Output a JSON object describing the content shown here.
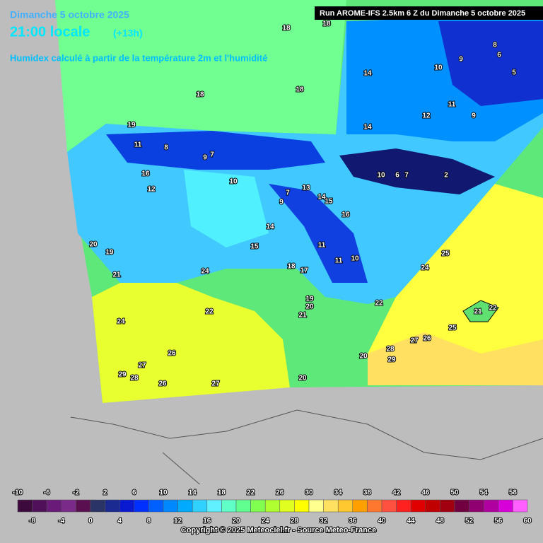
{
  "header": {
    "date": "Dimanche 5 octobre 2025",
    "time": "21:00 locale",
    "lead": "(+13h)",
    "subtitle": "Humidex calculé à partir de la température 2m et l'humidité",
    "run": "Run AROME-IFS 2.5km 6 Z du Dimanche 5 octobre 2025"
  },
  "map_labels": [
    18,
    18,
    18,
    18,
    19,
    11,
    8,
    9,
    7,
    16,
    12,
    10,
    7,
    9,
    13,
    14,
    15,
    16,
    14,
    15,
    11,
    11,
    10,
    18,
    17,
    20,
    19,
    21,
    24,
    19,
    20,
    21,
    22,
    24,
    26,
    27,
    29,
    28,
    26,
    27,
    20,
    14,
    14,
    10,
    6,
    7,
    2,
    12,
    10,
    9,
    11,
    9,
    6,
    5,
    8,
    25,
    24,
    28,
    29,
    20,
    27,
    26,
    25,
    21,
    22,
    22
  ],
  "legend": {
    "values": [
      -10,
      -8,
      -6,
      -4,
      -2,
      0,
      2,
      4,
      6,
      8,
      10,
      12,
      14,
      16,
      18,
      20,
      22,
      24,
      26,
      28,
      30,
      32,
      34,
      36,
      38,
      40,
      42,
      44,
      46,
      48,
      50,
      52,
      54,
      56,
      58,
      60
    ],
    "colors": [
      "#3c0a3c",
      "#50105a",
      "#6a1a78",
      "#7a2a88",
      "#5a1050",
      "#2a3466",
      "#1a2a90",
      "#0a1ad0",
      "#0030ff",
      "#0060ff",
      "#0088ff",
      "#00aaff",
      "#30d0ff",
      "#60f0ff",
      "#60ffc8",
      "#60ff90",
      "#80ff50",
      "#b0ff30",
      "#e0ff20",
      "#ffff00",
      "#ffff90",
      "#ffe060",
      "#ffc830",
      "#ffa000",
      "#ff7830",
      "#ff5040",
      "#ff2020",
      "#e00000",
      "#c00000",
      "#a00010",
      "#700040",
      "#900070",
      "#b000a0",
      "#d800d8",
      "#ff60ff"
    ]
  },
  "footer": {
    "copyright": "Copyright © 2025 Meteociel.fr - Source Meteo-France"
  }
}
